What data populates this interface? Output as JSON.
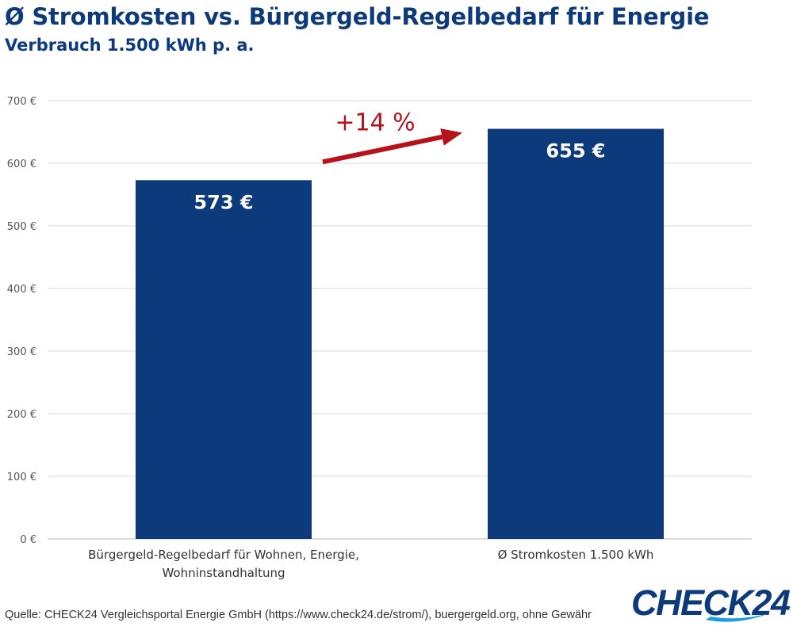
{
  "header": {
    "title": "Ø Stromkosten vs. Bürgergeld-Regelbedarf für Energie",
    "subtitle": "Verbrauch 1.500 kWh p. a."
  },
  "chart_data": {
    "type": "bar",
    "title": "Ø Stromkosten vs. Bürgergeld-Regelbedarf für Energie",
    "subtitle": "Verbrauch 1.500 kWh p. a.",
    "categories": [
      [
        "Bürgergeld-Regelbedarf für Wohnen, Energie,",
        "Wohninstandhaltung"
      ],
      [
        "Ø Stromkosten 1.500 kWh"
      ]
    ],
    "values": [
      573,
      655
    ],
    "value_labels": [
      "573 €",
      "655 €"
    ],
    "ylim": [
      0,
      700
    ],
    "yticks": [
      0,
      100,
      200,
      300,
      400,
      500,
      600,
      700
    ],
    "ytick_labels": [
      "0 €",
      "100 €",
      "200 €",
      "300 €",
      "400 €",
      "500 €",
      "600 €",
      "700 €"
    ],
    "grid": true,
    "legend": "none",
    "bar_color": "#0d3a7a",
    "annotation": {
      "text": "+14 %",
      "color": "#b5121b"
    }
  },
  "footer": {
    "source": "Quelle: CHECK24 Vergleichsportal Energie GmbH (https://www.check24.de/strom/), buergergeld.org, ohne Gewähr",
    "logo": "CHECK24"
  }
}
